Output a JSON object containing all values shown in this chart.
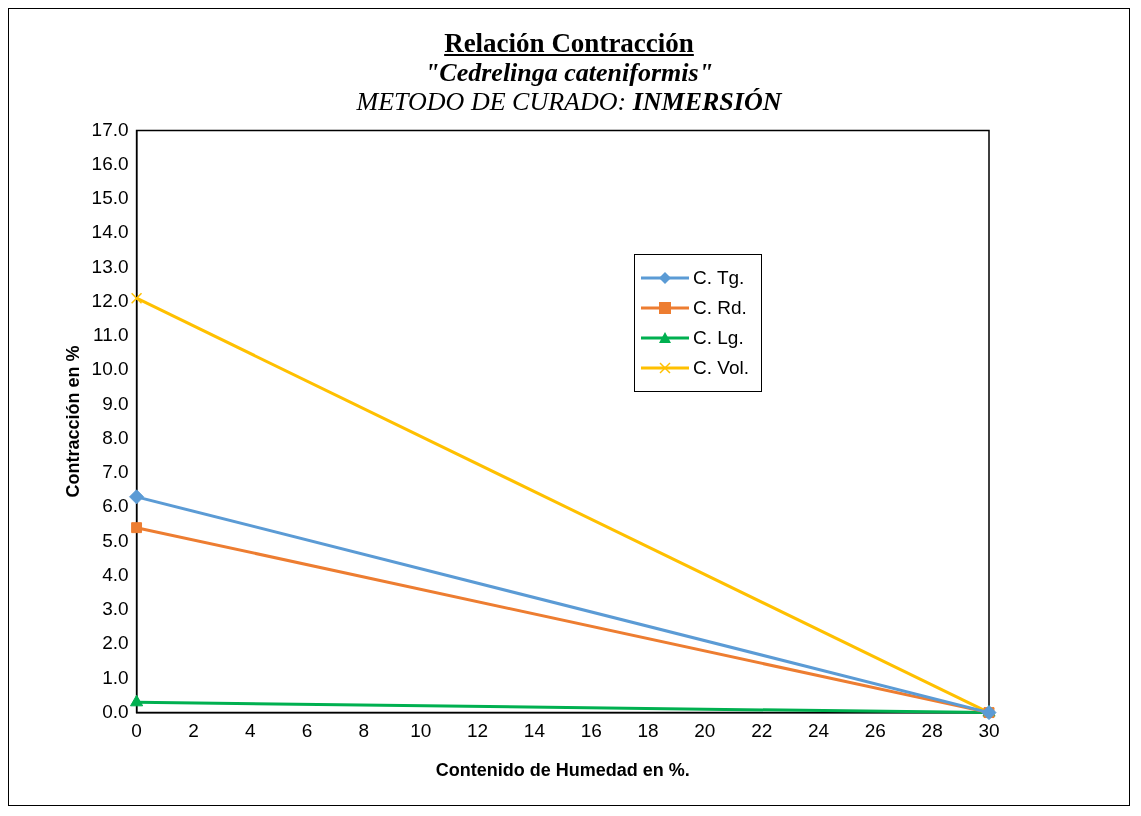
{
  "chart_data": {
    "type": "line",
    "title": "Relación Contracción",
    "subtitle": "\"Cedrelinga cateniformis\"",
    "annotations": [
      "METODO DE CURADO: INMERSIÓN"
    ],
    "xlabel": "Contenido de Humedad en %.",
    "ylabel": "Contracción en %",
    "x": [
      0,
      30
    ],
    "series": [
      {
        "name": "C. Tg.",
        "color": "#5b9bd5",
        "marker": "diamond",
        "values": [
          6.3,
          0
        ]
      },
      {
        "name": "C. Rd.",
        "color": "#ed7d31",
        "marker": "square",
        "values": [
          5.4,
          0
        ]
      },
      {
        "name": "C. Lg.",
        "color": "#00b050",
        "marker": "triangle",
        "values": [
          0.3,
          0
        ]
      },
      {
        "name": "C. Vol.",
        "color": "#ffc000",
        "marker": "cross",
        "values": [
          12.1,
          0
        ]
      }
    ],
    "xlim": [
      0,
      30
    ],
    "xticks": [
      0,
      2,
      4,
      6,
      8,
      10,
      12,
      14,
      16,
      18,
      20,
      22,
      24,
      26,
      28,
      30
    ],
    "ylim": [
      0,
      17
    ],
    "yticks": [
      {
        "value": 0,
        "label": "0.0"
      },
      {
        "value": 1,
        "label": "1.0"
      },
      {
        "value": 2,
        "label": "2.0"
      },
      {
        "value": 3,
        "label": "3.0"
      },
      {
        "value": 4,
        "label": "4.0"
      },
      {
        "value": 5,
        "label": "5.0"
      },
      {
        "value": 6,
        "label": "6.0"
      },
      {
        "value": 7,
        "label": "7.0"
      },
      {
        "value": 8,
        "label": "8.0"
      },
      {
        "value": 9,
        "label": "9.0"
      },
      {
        "value": 10,
        "label": "10.0"
      },
      {
        "value": 11,
        "label": "11.0"
      },
      {
        "value": 12,
        "label": "12.0"
      },
      {
        "value": 13,
        "label": "13.0"
      },
      {
        "value": 14,
        "label": "14.0"
      },
      {
        "value": 15,
        "label": "15.0"
      },
      {
        "value": 16,
        "label": "16.0"
      },
      {
        "value": 17,
        "label": "17.0"
      }
    ],
    "grid": false,
    "legend": "top right",
    "line_style": "solid"
  }
}
